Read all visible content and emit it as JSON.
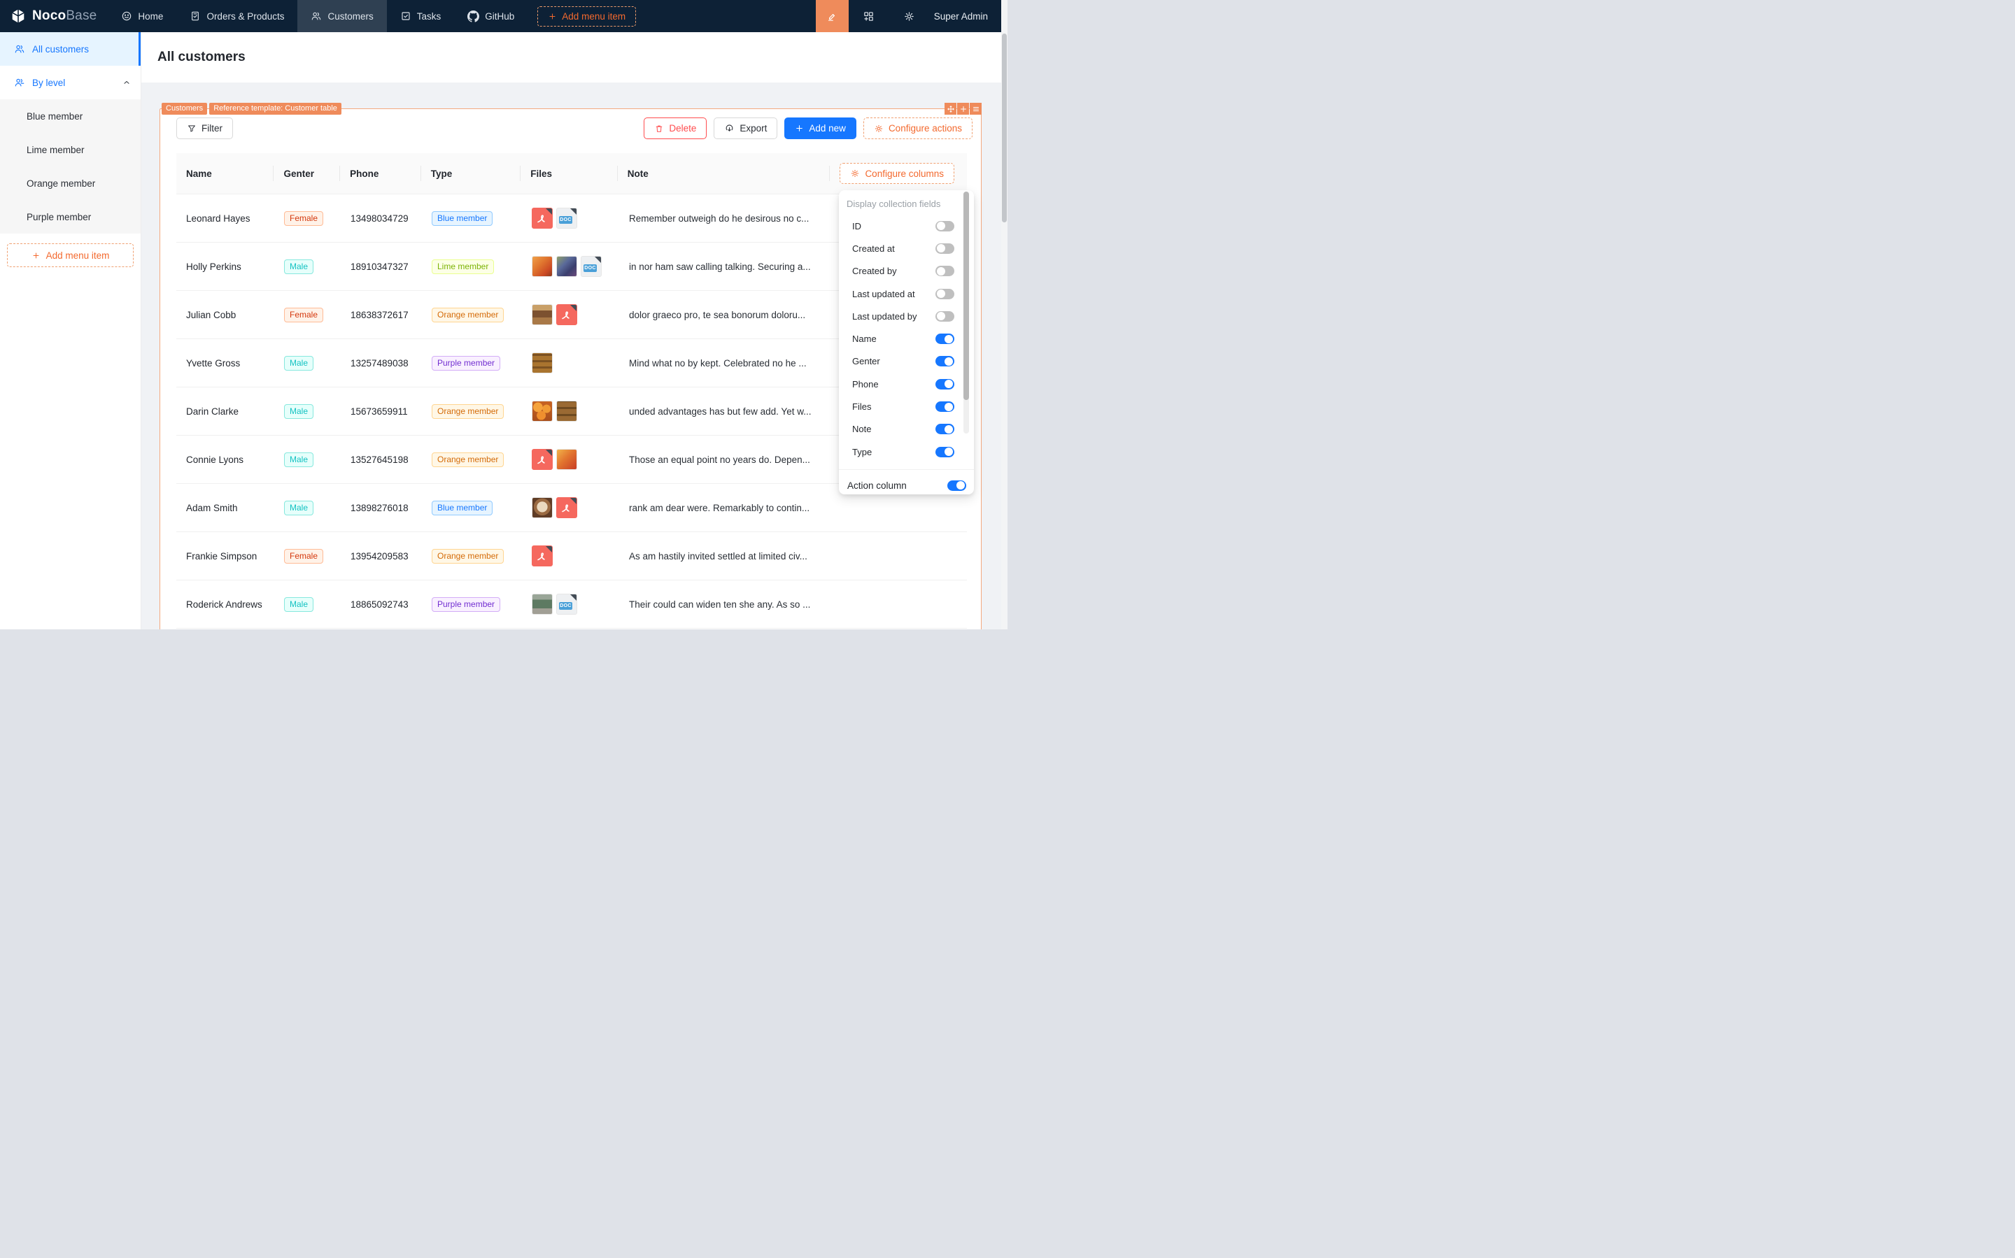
{
  "navbar": {
    "brand": {
      "bold": "Noco",
      "light": "Base"
    },
    "items": [
      {
        "label": "Home",
        "icon": "smile-icon",
        "active": false
      },
      {
        "label": "Orders & Products",
        "icon": "clipboard-icon",
        "active": false
      },
      {
        "label": "Customers",
        "icon": "users-icon",
        "active": true
      },
      {
        "label": "Tasks",
        "icon": "check-square-icon",
        "active": false
      },
      {
        "label": "GitHub",
        "icon": "github-icon",
        "active": false
      }
    ],
    "add_menu_item": "Add menu item",
    "user": "Super Admin"
  },
  "sidebar": {
    "all_customers": "All customers",
    "by_level": "By level",
    "levels": [
      "Blue member",
      "Lime member",
      "Orange member",
      "Purple member"
    ],
    "add_menu_item": "Add menu item"
  },
  "page": {
    "title": "All customers"
  },
  "block": {
    "tags": [
      "Customers",
      "Reference template: Customer table"
    ],
    "filter": "Filter",
    "delete": "Delete",
    "export": "Export",
    "add_new": "Add new",
    "configure_actions": "Configure actions",
    "configure_columns": "Configure columns"
  },
  "table": {
    "columns": [
      "Name",
      "Genter",
      "Phone",
      "Type",
      "Files",
      "Note"
    ],
    "doc_badge": "DOC",
    "rows": [
      {
        "name": "Leonard Hayes",
        "gender": {
          "label": "Female",
          "variant": "volcano"
        },
        "phone": "13498034729",
        "type": {
          "label": "Blue member",
          "variant": "blue"
        },
        "files": [
          {
            "kind": "pdf"
          },
          {
            "kind": "doc"
          }
        ],
        "note": "Remember outweigh do he desirous no c..."
      },
      {
        "name": "Holly Perkins",
        "gender": {
          "label": "Male",
          "variant": "cyan"
        },
        "phone": "18910347327",
        "type": {
          "label": "Lime member",
          "variant": "lime"
        },
        "files": [
          {
            "kind": "image",
            "photo": "pumpkins"
          },
          {
            "kind": "image",
            "photo": "grapes"
          },
          {
            "kind": "doc"
          }
        ],
        "note": "in nor ham saw calling talking. Securing a..."
      },
      {
        "name": "Julian Cobb",
        "gender": {
          "label": "Female",
          "variant": "volcano"
        },
        "phone": "18638372617",
        "type": {
          "label": "Orange member",
          "variant": "orange"
        },
        "files": [
          {
            "kind": "image",
            "photo": "collage"
          },
          {
            "kind": "pdf"
          }
        ],
        "note": "dolor graeco pro, te sea bonorum doloru..."
      },
      {
        "name": "Yvette Gross",
        "gender": {
          "label": "Male",
          "variant": "cyan"
        },
        "phone": "13257489038",
        "type": {
          "label": "Purple member",
          "variant": "purple"
        },
        "files": [
          {
            "kind": "image",
            "photo": "pastries"
          }
        ],
        "note": "Mind what no by kept. Celebrated no he ..."
      },
      {
        "name": "Darin Clarke",
        "gender": {
          "label": "Male",
          "variant": "cyan"
        },
        "phone": "15673659911",
        "type": {
          "label": "Orange member",
          "variant": "orange"
        },
        "files": [
          {
            "kind": "image",
            "photo": "oranges"
          },
          {
            "kind": "image",
            "photo": "pastries2"
          }
        ],
        "note": "unded advantages has but few add. Yet w..."
      },
      {
        "name": "Connie Lyons",
        "gender": {
          "label": "Male",
          "variant": "cyan"
        },
        "phone": "13527645198",
        "type": {
          "label": "Orange member",
          "variant": "orange"
        },
        "files": [
          {
            "kind": "pdf"
          },
          {
            "kind": "image",
            "photo": "mango"
          }
        ],
        "note": "Those an equal point no years do. Depen..."
      },
      {
        "name": "Adam Smith",
        "gender": {
          "label": "Male",
          "variant": "cyan"
        },
        "phone": "13898276018",
        "type": {
          "label": "Blue member",
          "variant": "blue"
        },
        "files": [
          {
            "kind": "image",
            "photo": "coffee"
          },
          {
            "kind": "pdf"
          }
        ],
        "note": "rank am dear were. Remarkably to contin..."
      },
      {
        "name": "Frankie Simpson",
        "gender": {
          "label": "Female",
          "variant": "volcano"
        },
        "phone": "13954209583",
        "type": {
          "label": "Orange member",
          "variant": "orange"
        },
        "files": [
          {
            "kind": "pdf"
          }
        ],
        "note": "As am hastily invited settled at limited civ..."
      },
      {
        "name": "Roderick Andrews",
        "gender": {
          "label": "Male",
          "variant": "cyan"
        },
        "phone": "18865092743",
        "type": {
          "label": "Purple member",
          "variant": "purple"
        },
        "files": [
          {
            "kind": "image",
            "photo": "storefront"
          },
          {
            "kind": "doc"
          }
        ],
        "note": "Their could can widen ten she any. As so ..."
      }
    ]
  },
  "dropdown": {
    "title": "Display collection fields",
    "fields": [
      {
        "label": "ID",
        "on": false
      },
      {
        "label": "Created at",
        "on": false
      },
      {
        "label": "Created by",
        "on": false
      },
      {
        "label": "Last updated at",
        "on": false
      },
      {
        "label": "Last updated by",
        "on": false
      },
      {
        "label": "Name",
        "on": true
      },
      {
        "label": "Genter",
        "on": true
      },
      {
        "label": "Phone",
        "on": true
      },
      {
        "label": "Files",
        "on": true
      },
      {
        "label": "Note",
        "on": true
      },
      {
        "label": "Type",
        "on": true
      }
    ],
    "action_column": {
      "label": "Action column",
      "on": true
    }
  },
  "colors": {
    "navbar_bg": "#0d2136",
    "brand_orange": "#ef8b5b",
    "orange_text": "#f3692e",
    "primary_blue": "#1677ff",
    "danger_red": "#ff4d4f",
    "pdf_red": "#f5685e",
    "doc_blue": "#4aa0d8"
  }
}
